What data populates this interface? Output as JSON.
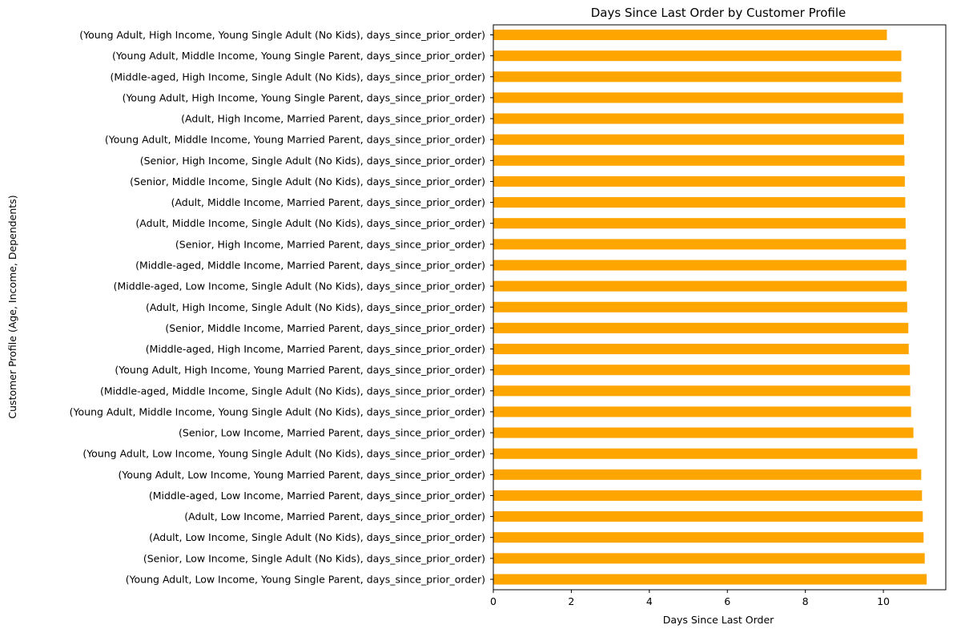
{
  "chart_data": {
    "type": "bar",
    "orientation": "horizontal",
    "title": "Days Since Last Order by Customer Profile",
    "xlabel": "Days Since Last Order",
    "ylabel": "Customer Profile (Age, Income, Dependents)",
    "xlim": [
      0,
      11.6
    ],
    "xticks": [
      "0",
      "2",
      "4",
      "6",
      "8",
      "10"
    ],
    "grid": false,
    "legend": "none",
    "bar_color": "#ffa500",
    "categories": [
      "(Young Adult, High Income, Young Single Adult (No Kids), days_since_prior_order)",
      "(Young Adult, Middle Income, Young Single Parent, days_since_prior_order)",
      "(Middle-aged, High Income, Single Adult (No Kids), days_since_prior_order)",
      "(Young Adult, High Income, Young Single Parent, days_since_prior_order)",
      "(Adult, High Income, Married Parent, days_since_prior_order)",
      "(Young Adult, Middle Income, Young Married Parent, days_since_prior_order)",
      "(Senior, High Income, Single Adult (No Kids), days_since_prior_order)",
      "(Senior, Middle Income, Single Adult (No Kids), days_since_prior_order)",
      "(Adult, Middle Income, Married Parent, days_since_prior_order)",
      "(Adult, Middle Income, Single Adult (No Kids), days_since_prior_order)",
      "(Senior, High Income, Married Parent, days_since_prior_order)",
      "(Middle-aged, Middle Income, Married Parent, days_since_prior_order)",
      "(Middle-aged, Low Income, Single Adult (No Kids), days_since_prior_order)",
      "(Adult, High Income, Single Adult (No Kids), days_since_prior_order)",
      "(Senior, Middle Income, Married Parent, days_since_prior_order)",
      "(Middle-aged, High Income, Married Parent, days_since_prior_order)",
      "(Young Adult, High Income, Young Married Parent, days_since_prior_order)",
      "(Middle-aged, Middle Income, Single Adult (No Kids), days_since_prior_order)",
      "(Young Adult, Middle Income, Young Single Adult (No Kids), days_since_prior_order)",
      "(Senior, Low Income, Married Parent, days_since_prior_order)",
      "(Young Adult, Low Income, Young Single Adult (No Kids), days_since_prior_order)",
      "(Young Adult, Low Income, Young Married Parent, days_since_prior_order)",
      "(Middle-aged, Low Income, Married Parent, days_since_prior_order)",
      "(Adult, Low Income, Married Parent, days_since_prior_order)",
      "(Adult, Low Income, Single Adult (No Kids), days_since_prior_order)",
      "(Senior, Low Income, Single Adult (No Kids), days_since_prior_order)",
      "(Young Adult, Low Income, Young Single Parent, days_since_prior_order)"
    ],
    "values": [
      10.09,
      10.46,
      10.46,
      10.5,
      10.52,
      10.53,
      10.54,
      10.55,
      10.56,
      10.57,
      10.58,
      10.59,
      10.6,
      10.61,
      10.64,
      10.65,
      10.68,
      10.69,
      10.71,
      10.77,
      10.87,
      10.97,
      10.99,
      11.01,
      11.03,
      11.06,
      11.11
    ]
  }
}
